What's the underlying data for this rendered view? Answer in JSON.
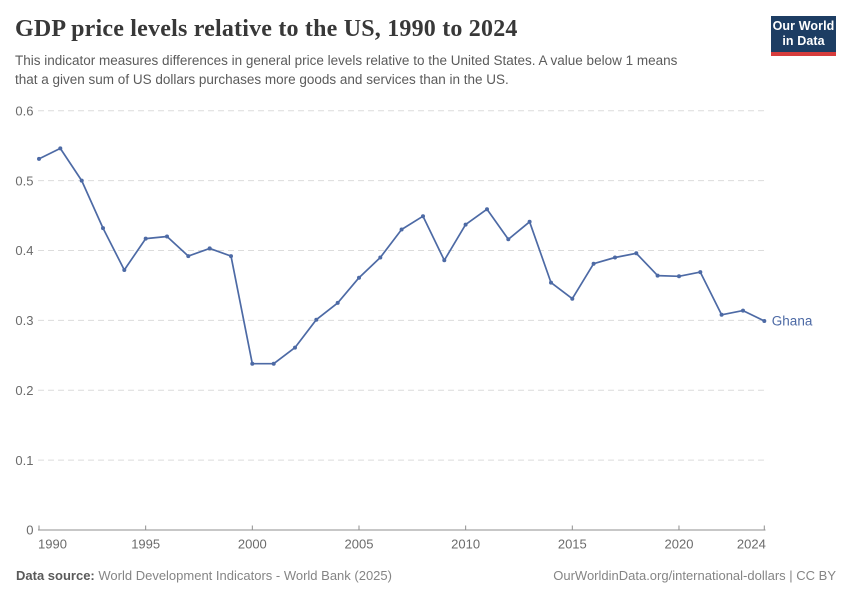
{
  "header": {
    "title": "GDP price levels relative to the US, 1990 to 2024",
    "subtitle": {
      "line1": "This indicator measures differences in general price levels relative to the United States. A value below 1 means",
      "line2": "that a given sum of US dollars purchases more goods and services than in the US."
    },
    "logo": {
      "line1": "Our World",
      "line2": "in Data"
    }
  },
  "chart_data": {
    "type": "line",
    "title": "GDP price levels relative to the US, 1990 to 2024",
    "x": [
      1990,
      1991,
      1992,
      1993,
      1994,
      1995,
      1996,
      1997,
      1998,
      1999,
      2000,
      2001,
      2002,
      2003,
      2004,
      2005,
      2006,
      2007,
      2008,
      2009,
      2010,
      2011,
      2012,
      2013,
      2014,
      2015,
      2016,
      2017,
      2018,
      2019,
      2020,
      2021,
      2022,
      2023,
      2024
    ],
    "series": [
      {
        "name": "Ghana",
        "color": "#4d6aa5",
        "values": [
          0.531,
          0.546,
          0.5,
          0.432,
          0.372,
          0.417,
          0.42,
          0.392,
          0.403,
          0.392,
          0.238,
          0.238,
          0.261,
          0.301,
          0.325,
          0.361,
          0.39,
          0.43,
          0.449,
          0.386,
          0.437,
          0.459,
          0.416,
          0.441,
          0.354,
          0.331,
          0.381,
          0.39,
          0.396,
          0.364,
          0.363,
          0.369,
          0.308,
          0.314,
          0.299
        ]
      }
    ],
    "xlabel": "",
    "ylabel": "",
    "ylim": [
      0,
      0.6
    ],
    "yticks": [
      0,
      0.1,
      0.2,
      0.3,
      0.4,
      0.5,
      0.6
    ],
    "xticks": [
      1990,
      1995,
      2000,
      2005,
      2010,
      2015,
      2020,
      2024
    ],
    "grid": "horizontal-dashed",
    "legend": "line-end-label"
  },
  "footer": {
    "source_label": "Data source:",
    "source_text": "World Development Indicators - World Bank (2025)",
    "credit": "OurWorldinData.org/international-dollars | CC BY"
  },
  "colors": {
    "line": "#4d6aa5",
    "grid": "#dcdcdc",
    "axis": "#8f8f8f",
    "tick_label": "#6b6b6b",
    "title": "#383838",
    "subtitle": "#5b5b5b",
    "footer": "#858585",
    "logo_bg": "#1d3d63",
    "logo_stripe": "#d73c3c"
  }
}
